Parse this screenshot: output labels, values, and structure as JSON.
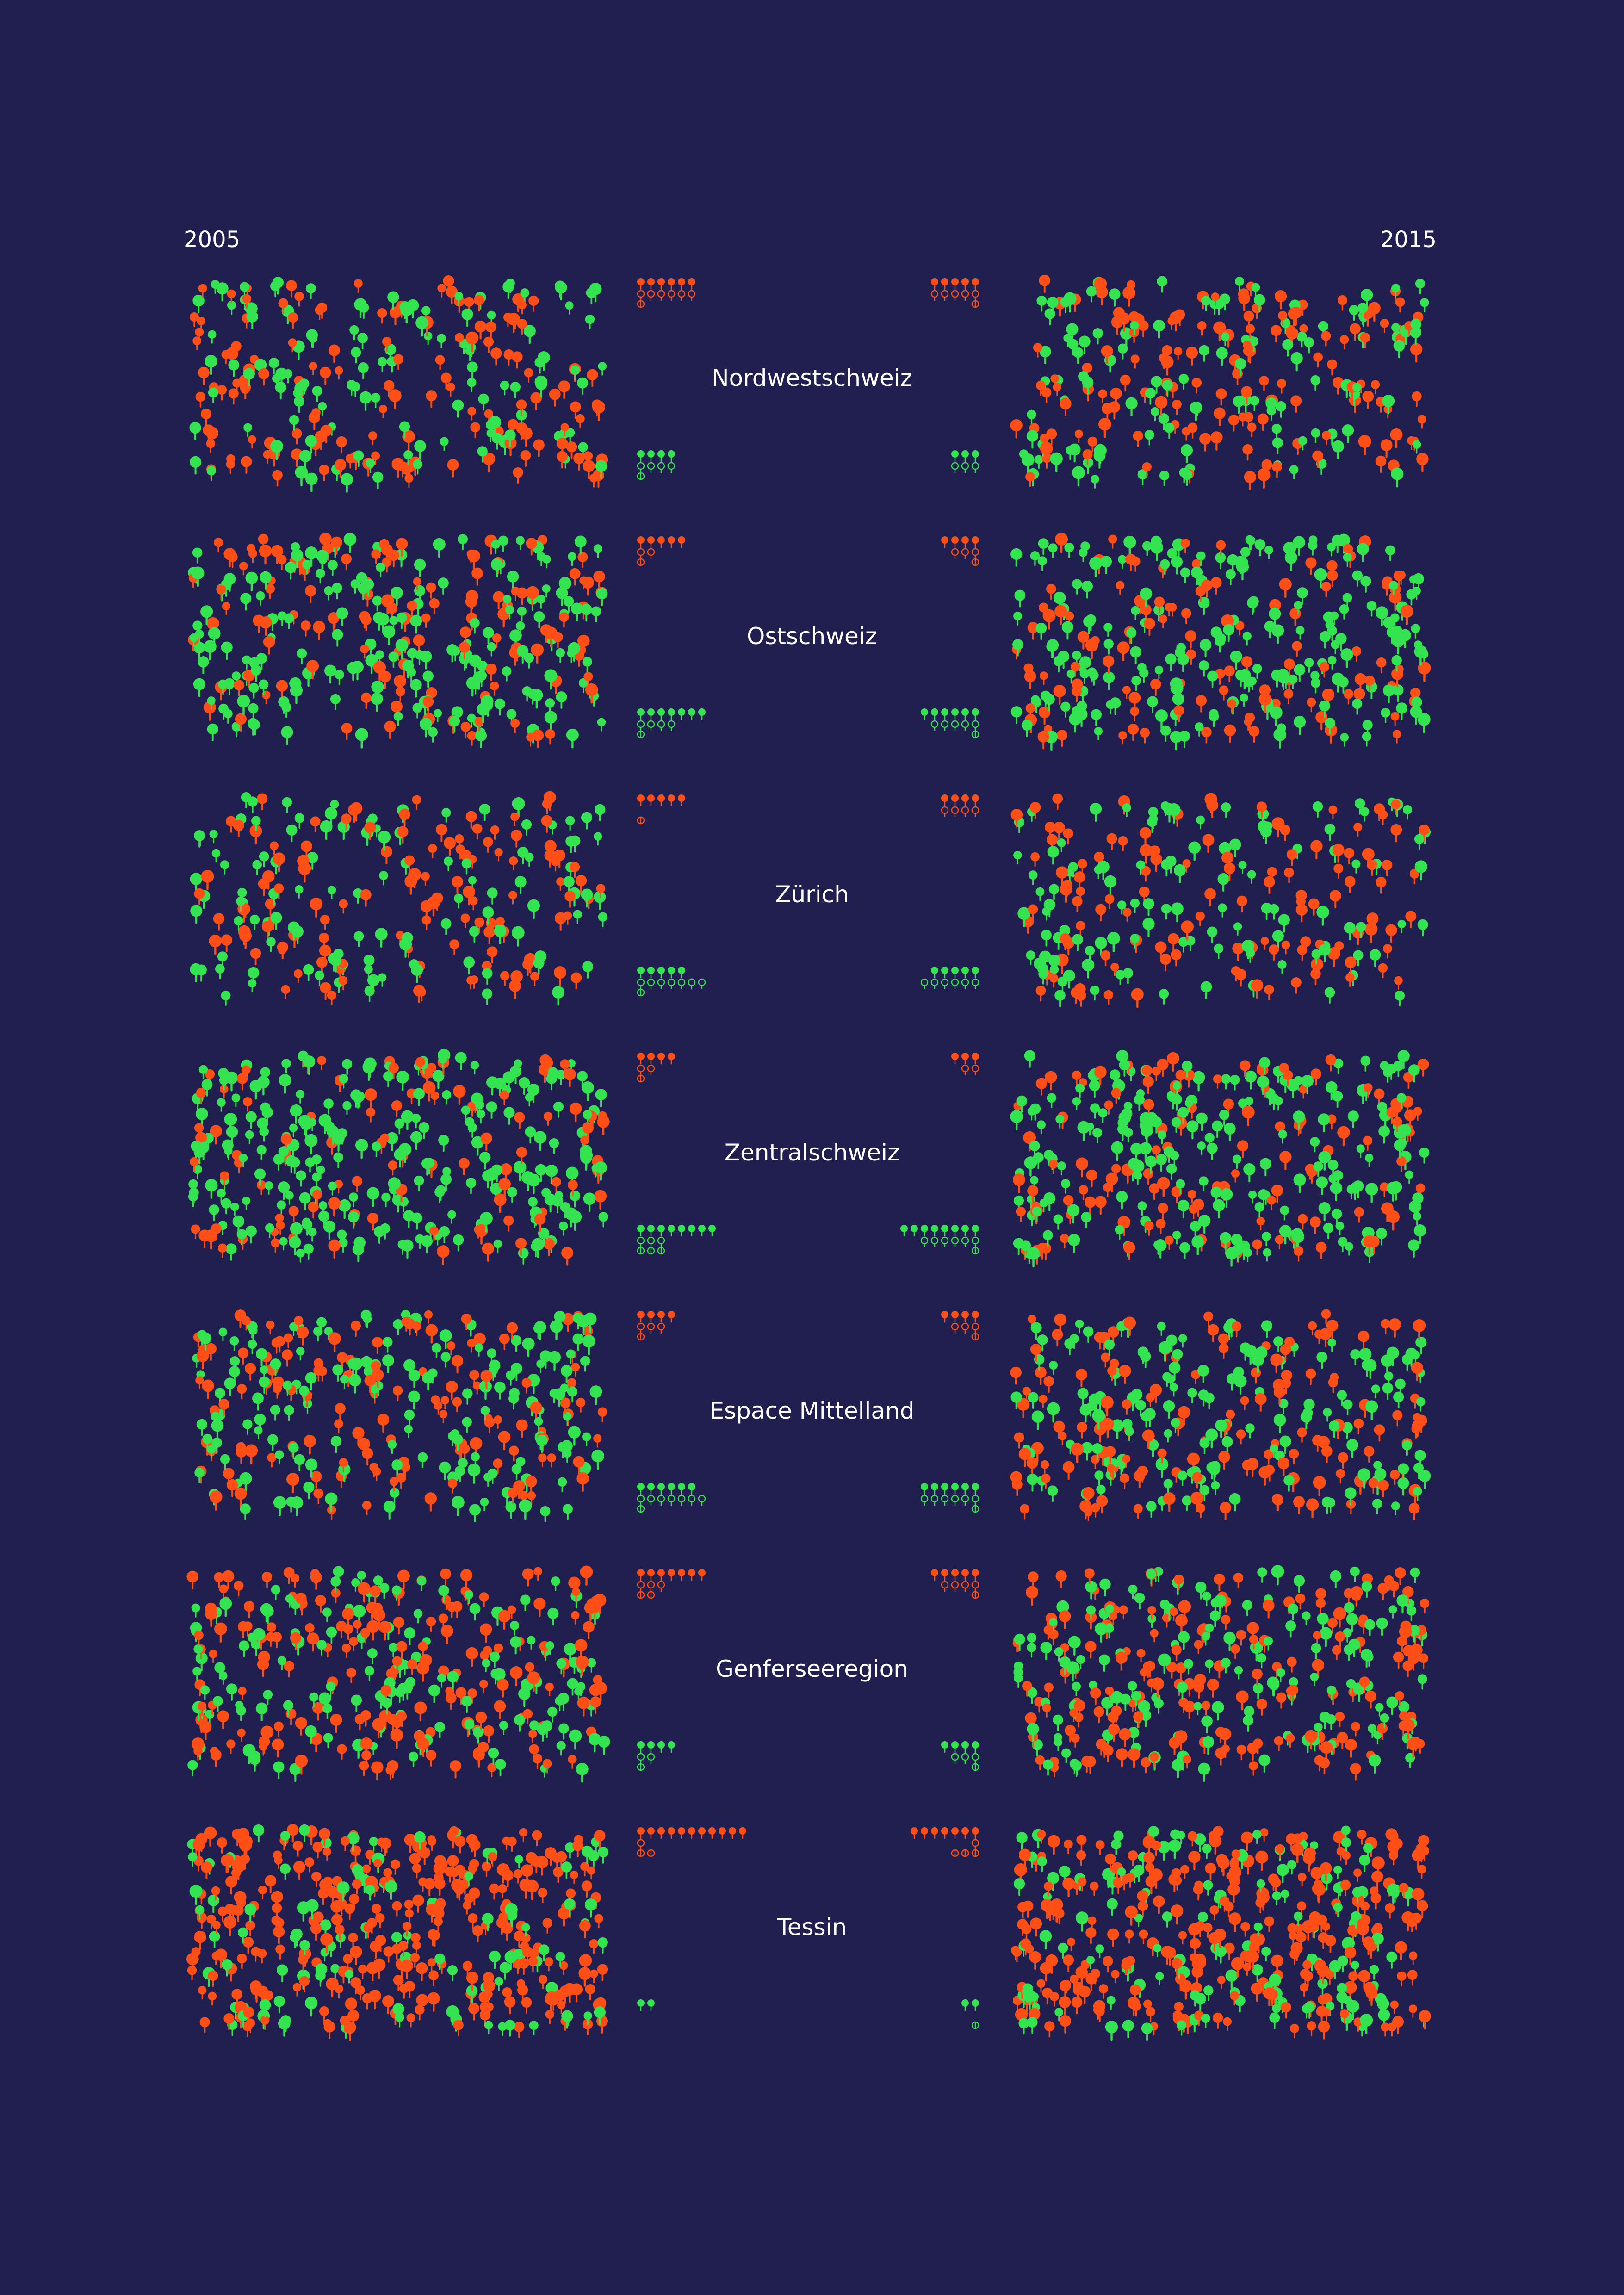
{
  "colors": {
    "background": "#211f4f",
    "text": "#ffffff",
    "orange": "#ff4f17",
    "green": "#33e34f"
  },
  "header": {
    "left_year": "2005",
    "right_year": "2015"
  },
  "chart_data": {
    "type": "pictogram-comparison",
    "years": [
      "2005",
      "2015"
    ],
    "scatter_density": {
      "2005": [
        260,
        320,
        230,
        330,
        300,
        330,
        420
      ],
      "2015": [
        260,
        320,
        230,
        330,
        300,
        330,
        420
      ]
    },
    "regions": [
      {
        "name": "Nordwestschweiz",
        "2005": {
          "orange": [
            6,
            6,
            1
          ],
          "green": [
            4,
            4,
            1
          ],
          "green_share": 0.46
        },
        "2015": {
          "orange": [
            5,
            5,
            1
          ],
          "green": [
            3,
            3,
            0
          ],
          "green_share": 0.46
        }
      },
      {
        "name": "Ostschweiz",
        "2005": {
          "orange": [
            5,
            2,
            1
          ],
          "green": [
            7,
            4,
            1
          ],
          "green_share": 0.62
        },
        "2015": {
          "orange": [
            4,
            3,
            1
          ],
          "green": [
            6,
            5,
            1
          ],
          "green_share": 0.58
        }
      },
      {
        "name": "Zürich",
        "2005": {
          "orange": [
            5,
            0,
            1
          ],
          "green": [
            5,
            7,
            1
          ],
          "green_share": 0.52
        },
        "2015": {
          "orange": [
            4,
            4,
            0
          ],
          "green": [
            5,
            6,
            0
          ],
          "green_share": 0.52
        }
      },
      {
        "name": "Zentralschweiz",
        "2005": {
          "orange": [
            4,
            2,
            1
          ],
          "green": [
            8,
            3,
            3
          ],
          "green_share": 0.66
        },
        "2015": {
          "orange": [
            3,
            2,
            0
          ],
          "green": [
            8,
            6,
            1
          ],
          "green_share": 0.64
        }
      },
      {
        "name": "Espace Mittelland",
        "2005": {
          "orange": [
            4,
            3,
            1
          ],
          "green": [
            6,
            7,
            1
          ],
          "green_share": 0.54
        },
        "2015": {
          "orange": [
            4,
            3,
            1
          ],
          "green": [
            6,
            6,
            1
          ],
          "green_share": 0.52
        }
      },
      {
        "name": "Genferseeregion",
        "2005": {
          "orange": [
            7,
            3,
            2
          ],
          "green": [
            4,
            2,
            1
          ],
          "green_share": 0.44
        },
        "2015": {
          "orange": [
            5,
            4,
            1
          ],
          "green": [
            4,
            3,
            1
          ],
          "green_share": 0.48
        }
      },
      {
        "name": "Tessin",
        "2005": {
          "orange": [
            11,
            1,
            2
          ],
          "green": [
            2,
            0,
            0
          ],
          "green_share": 0.25
        },
        "2015": {
          "orange": [
            7,
            1,
            3
          ],
          "green": [
            2,
            0,
            1
          ],
          "green_share": 0.32
        }
      }
    ]
  }
}
